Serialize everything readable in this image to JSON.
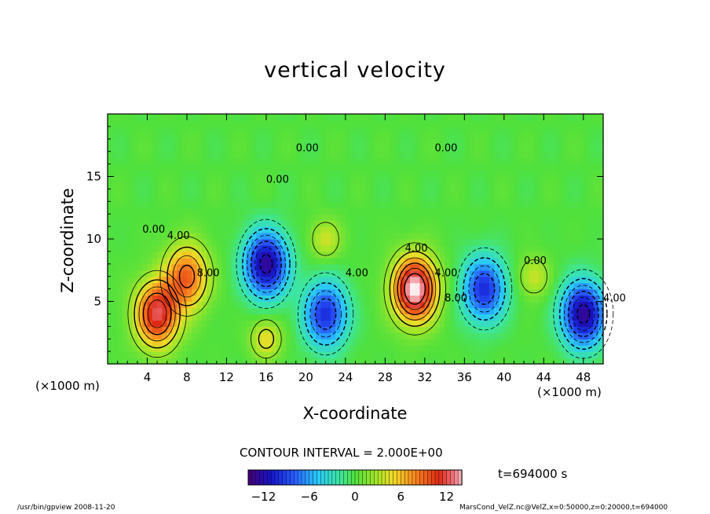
{
  "chart_data": {
    "type": "heatmap",
    "title": "vertical velocity",
    "xlabel": "X-coordinate",
    "ylabel": "Z-coordinate",
    "x_scale_note": "(×1000 m)",
    "y_scale_note": "(×1000 m)",
    "xlim": [
      0,
      50
    ],
    "ylim": [
      0,
      20
    ],
    "x_ticks": [
      "4",
      "8",
      "12",
      "16",
      "20",
      "24",
      "28",
      "32",
      "36",
      "40",
      "44",
      "48"
    ],
    "y_ticks": [
      "5",
      "10",
      "15"
    ],
    "contour_interval": "CONTOUR INTERVAL = 2.000E+00",
    "colorbar": {
      "min": -14,
      "max": 14,
      "ticks": [
        "−12",
        "−6",
        "0",
        "6",
        "12"
      ]
    },
    "contour_labels": [
      "0.00",
      "4.00",
      "8.00",
      "0.00",
      "0.00",
      "4.00",
      "4.00",
      "0.00",
      "4.00",
      "8.00",
      "0.00",
      "4.00"
    ],
    "features": [
      {
        "kind": "updraft",
        "x": 5,
        "z": 4,
        "peak": 12
      },
      {
        "kind": "updraft",
        "x": 8,
        "z": 7,
        "peak": 9
      },
      {
        "kind": "downdraft",
        "x": 16,
        "z": 8,
        "peak": -13
      },
      {
        "kind": "downdraft",
        "x": 22,
        "z": 4,
        "peak": -10
      },
      {
        "kind": "updraft",
        "x": 16,
        "z": 2,
        "peak": 5
      },
      {
        "kind": "updraft",
        "x": 22,
        "z": 10,
        "peak": 4
      },
      {
        "kind": "updraft",
        "x": 31,
        "z": 6,
        "peak": 15
      },
      {
        "kind": "downdraft",
        "x": 38,
        "z": 6,
        "peak": -10
      },
      {
        "kind": "updraft",
        "x": 43,
        "z": 7,
        "peak": 4
      },
      {
        "kind": "downdraft",
        "x": 48,
        "z": 4,
        "peak": -13
      }
    ]
  },
  "annotations": {
    "time_label": "t=694000 s",
    "footer_left": "/usr/bin/gpview  2008-11-20",
    "footer_right": "MarsCond_VelZ.nc@VelZ,x=0:50000,z=0:20000,t=694000"
  },
  "colors": {
    "negative_strong": "#4a0080",
    "negative": "#1030c8",
    "zero": "#48e040",
    "positive": "#e83010",
    "positive_strong": "#ffffff"
  }
}
